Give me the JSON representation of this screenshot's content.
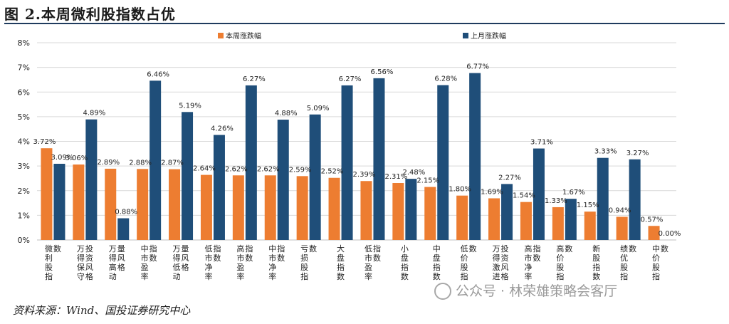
{
  "title": "图 2.本周微利股指数占优",
  "source": "资料来源：Wind、国投证券研究中心",
  "watermark": "公众号 · 林荣雄策略会客厅",
  "colors": {
    "series1": "#ED7D31",
    "series2": "#1F4E79",
    "grid": "#d9d9d9",
    "text": "#222222"
  },
  "chart_data": {
    "type": "bar",
    "ylim": [
      0,
      8
    ],
    "yticks": [
      "0%",
      "1%",
      "2%",
      "3%",
      "4%",
      "5%",
      "6%",
      "7%",
      "8%"
    ],
    "legend_position": "top",
    "grid": true,
    "categories": [
      "微利股指数",
      "万得保守投资风格",
      "万得高动量风格",
      "中市盈率指数",
      "万得低动量风格",
      "低市净率指数",
      "高市盈率指数",
      "中市净率指数",
      "亏损股指数",
      "大盘指数",
      "低市盈率指数",
      "小盘指数",
      "中盘指数",
      "低价股指数",
      "万得激进投资风格",
      "高市净率指数",
      "高价股指数",
      "新股指数",
      "绩优股指数",
      "中价股指数"
    ],
    "series": [
      {
        "name": "本周涨跌幅",
        "values": [
          3.72,
          3.06,
          2.89,
          2.88,
          2.87,
          2.64,
          2.62,
          2.62,
          2.59,
          2.52,
          2.39,
          2.31,
          2.15,
          1.8,
          1.69,
          1.54,
          1.33,
          1.15,
          0.94,
          0.57
        ],
        "labels": [
          "3.72%",
          "3.06%",
          "2.89%",
          "2.88%",
          "2.87%",
          "2.64%",
          "2.62%",
          "2.62%",
          "2.59%",
          "2.52%",
          "2.39%",
          "2.31%",
          "2.15%",
          "1.80%",
          "1.69%",
          "1.54%",
          "1.33%",
          "1.15%",
          "0.94%",
          "0.57%"
        ]
      },
      {
        "name": "上月涨跌幅",
        "values": [
          3.09,
          4.89,
          0.88,
          6.46,
          5.19,
          4.26,
          6.27,
          4.88,
          5.09,
          6.27,
          6.56,
          2.48,
          6.28,
          6.77,
          2.27,
          3.71,
          1.67,
          3.33,
          3.27,
          0.0
        ],
        "labels": [
          "3.09%",
          "4.89%",
          "0.88%",
          "6.46%",
          "5.19%",
          "4.26%",
          "6.27%",
          "4.88%",
          "5.09%",
          "6.27%",
          "6.56%",
          "2.48%",
          "6.28%",
          "6.77%",
          "2.27%",
          "3.71%",
          "1.67%",
          "3.33%",
          "3.27%",
          "0.00%"
        ]
      }
    ]
  }
}
